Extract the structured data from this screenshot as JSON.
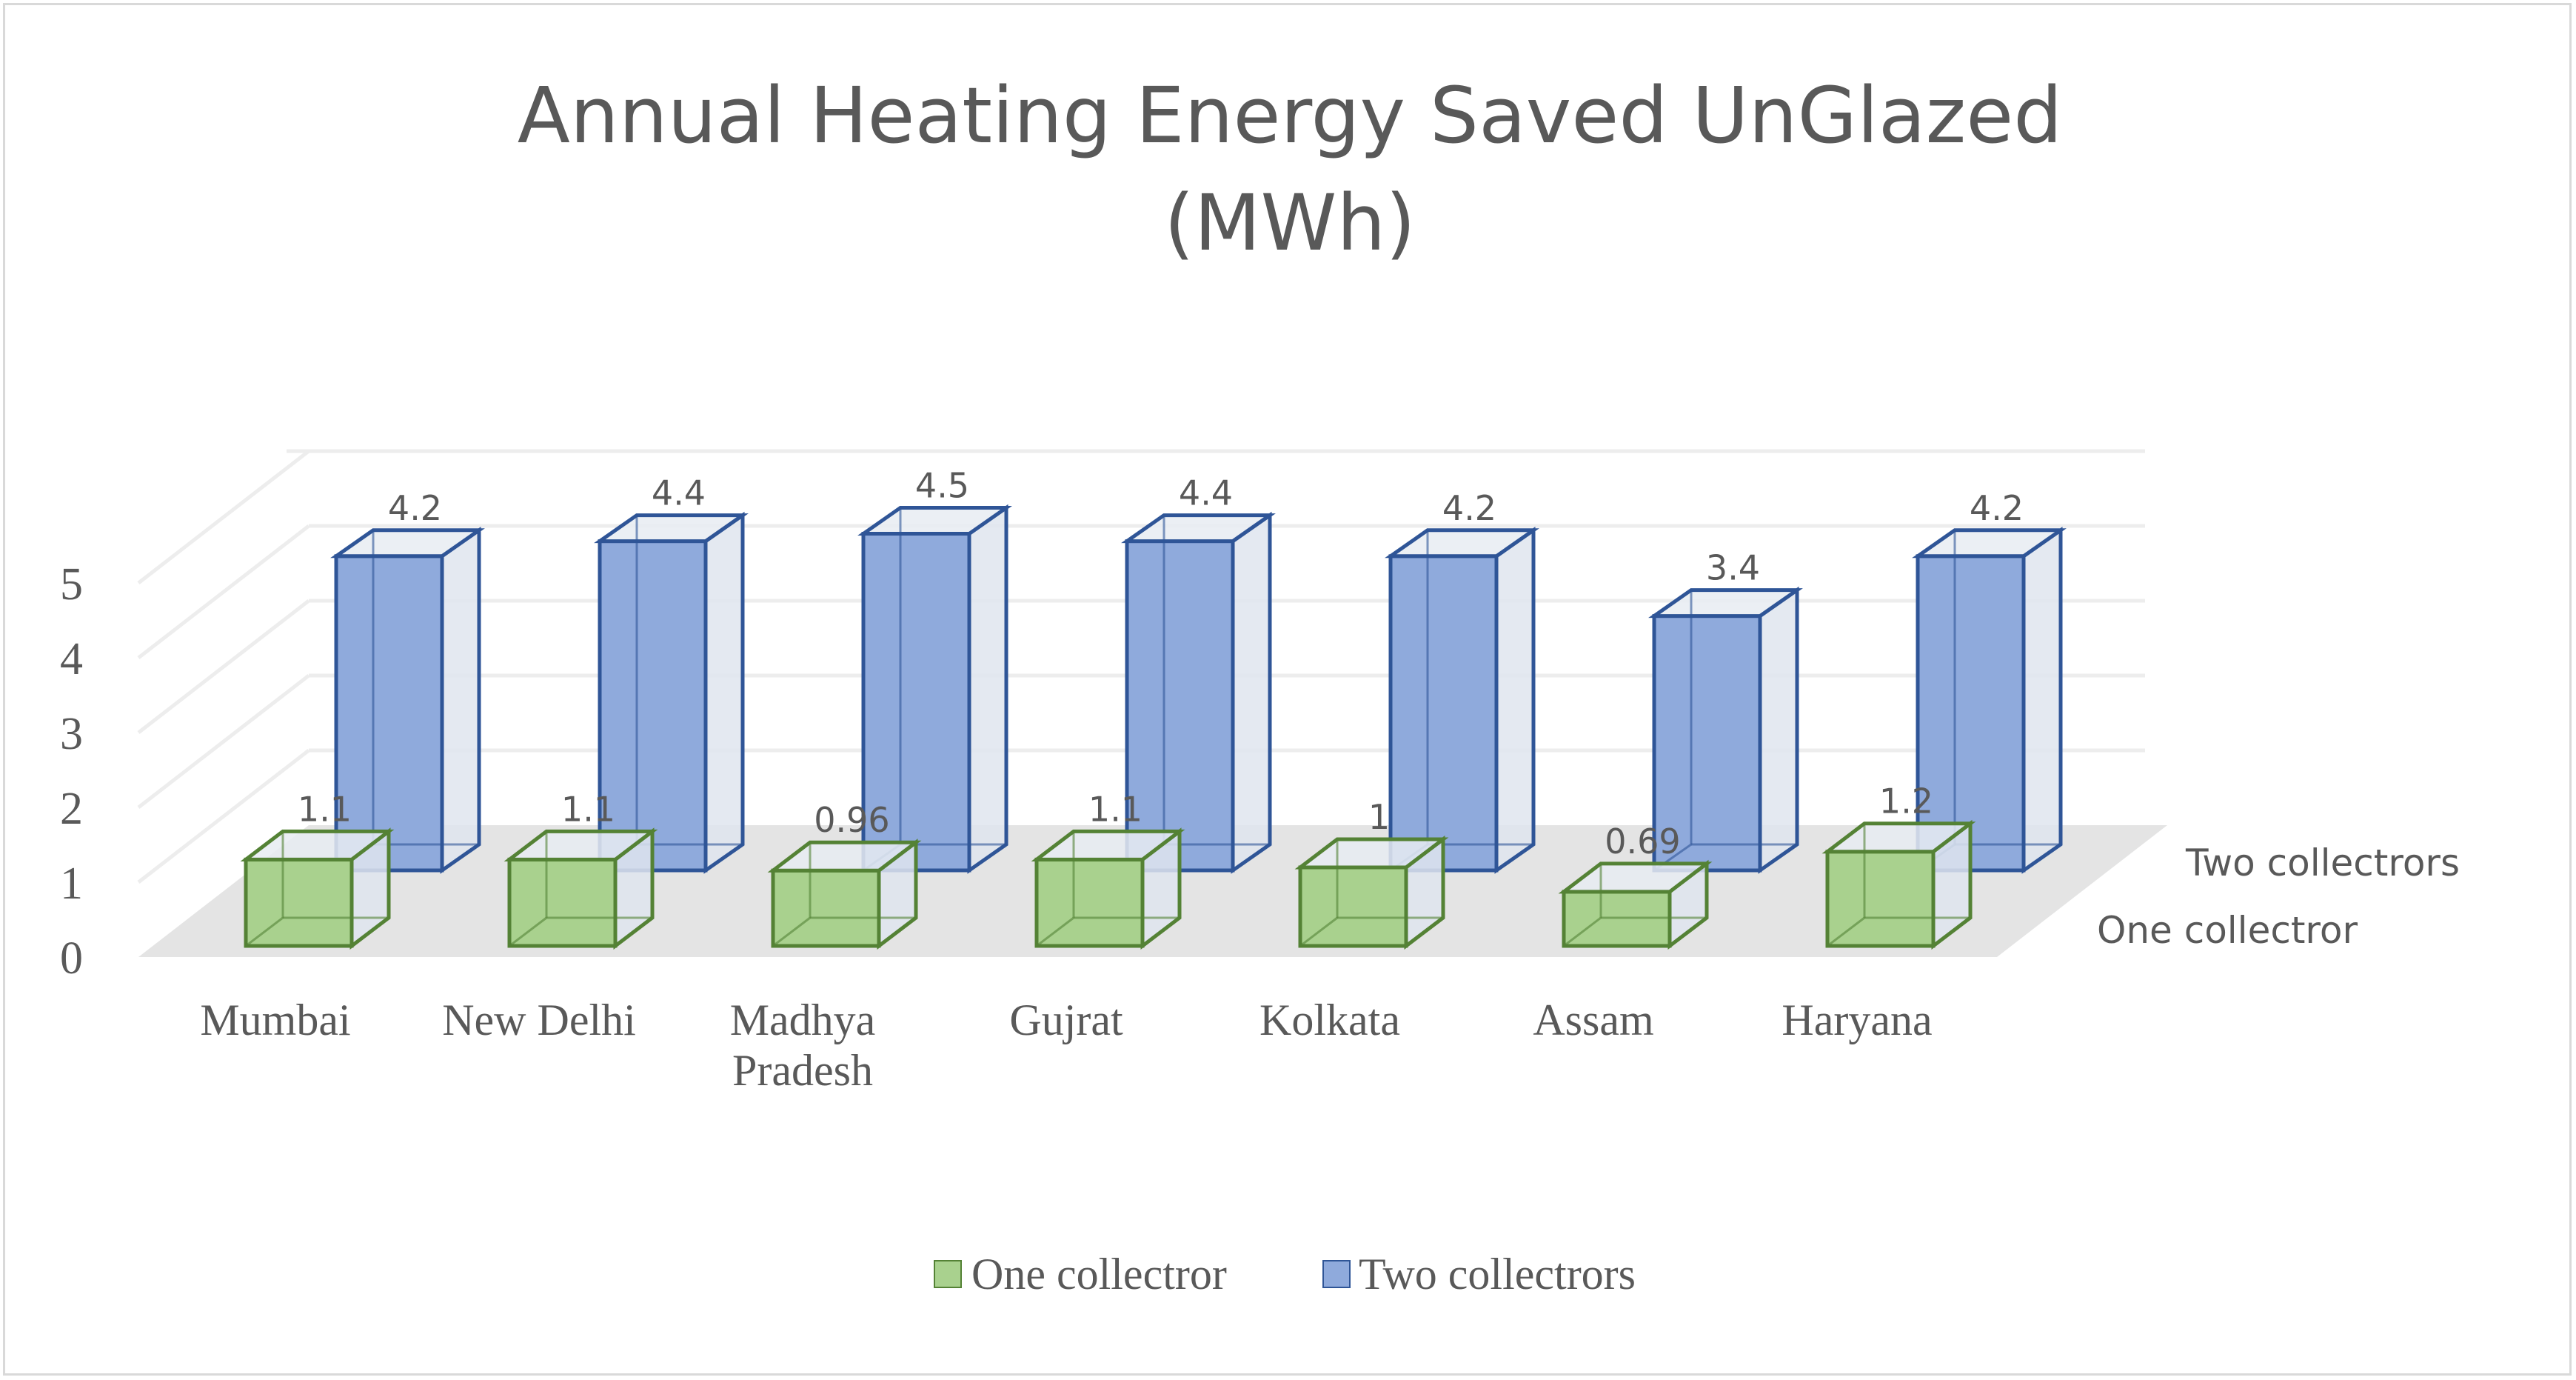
{
  "colors": {
    "one_fill": "#a9d18e",
    "one_stroke": "#548235",
    "two_fill": "#8faadc",
    "two_stroke": "#2f5597",
    "grid": "#ededed",
    "floor": "#e4e4e4",
    "text": "#595959"
  },
  "chart_data": {
    "type": "bar",
    "title": "Annual Heating Energy Saved UnGlazed",
    "title_line2": "(MWh)",
    "categories": [
      "Mumbai",
      "New Delhi",
      "Madhya Pradesh",
      "Gujrat",
      "Kolkata",
      "Assam",
      "Haryana"
    ],
    "category_lines": [
      [
        "Mumbai"
      ],
      [
        "New Delhi"
      ],
      [
        "Madhya",
        "Pradesh"
      ],
      [
        "Gujrat"
      ],
      [
        "Kolkata"
      ],
      [
        "Assam"
      ],
      [
        "Haryana"
      ]
    ],
    "series": [
      {
        "name": "One collectror",
        "values": [
          1.1,
          1.1,
          0.96,
          1.1,
          1,
          0.69,
          1.2
        ],
        "labels": [
          "1.1",
          "1.1",
          "0.96",
          "1.1",
          "1",
          "0.69",
          "1.2"
        ]
      },
      {
        "name": "Two collectrors",
        "values": [
          4.2,
          4.4,
          4.5,
          4.4,
          4.2,
          3.4,
          4.2
        ],
        "labels": [
          "4.2",
          "4.4",
          "4.5",
          "4.4",
          "4.2",
          "3.4",
          "4.2"
        ]
      }
    ],
    "depth_labels": [
      "Two collectrors",
      "One collectror"
    ],
    "yticks": [
      0,
      1,
      2,
      3,
      4,
      5
    ],
    "ylim": [
      0,
      5
    ],
    "legend_position": "bottom",
    "xlabel": "",
    "ylabel": ""
  }
}
